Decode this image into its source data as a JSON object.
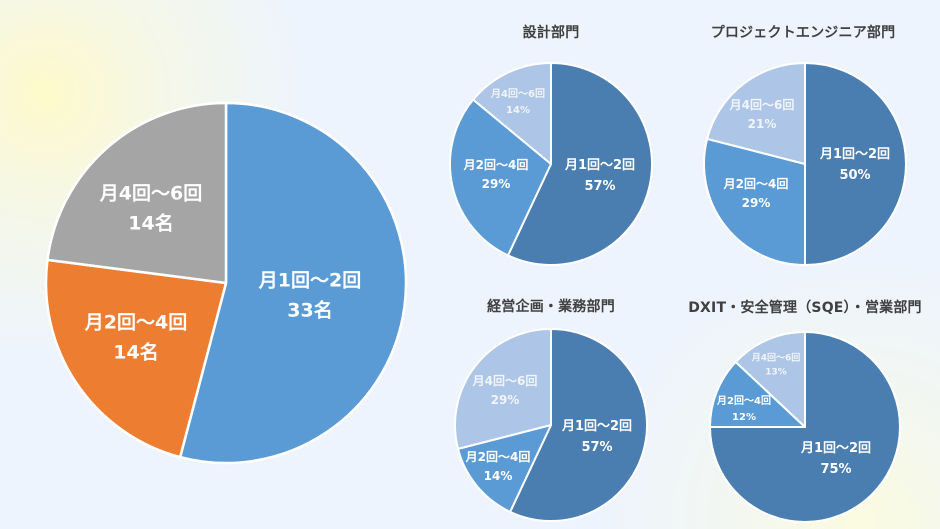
{
  "chart_data": [
    {
      "type": "pie",
      "title": "",
      "categories": [
        "月1回～2回",
        "月2回～4回",
        "月4回～6回"
      ],
      "values": [
        33,
        14,
        14
      ],
      "unit": "名",
      "labels": [
        "33名",
        "14名",
        "14名"
      ],
      "colors": [
        "#5b9bd5",
        "#ed7d31",
        "#a5a5a5"
      ],
      "start_angle": "12 o'clock, clockwise"
    },
    {
      "type": "pie",
      "title": "設計部門",
      "categories": [
        "月1回～2回",
        "月2回～4回",
        "月4回～6回"
      ],
      "values": [
        57,
        29,
        14
      ],
      "unit": "%",
      "labels": [
        "57%",
        "29%",
        "14%"
      ],
      "colors": [
        "#4a7eb0",
        "#5b9bd5",
        "#adc5e6"
      ]
    },
    {
      "type": "pie",
      "title": "プロジェクトエンジニア部門",
      "categories": [
        "月1回～2回",
        "月2回～4回",
        "月4回～6回"
      ],
      "values": [
        50,
        29,
        21
      ],
      "unit": "%",
      "labels": [
        "50%",
        "29%",
        "21%"
      ],
      "colors": [
        "#4a7eb0",
        "#5b9bd5",
        "#adc5e6"
      ]
    },
    {
      "type": "pie",
      "title": "経営企画・業務部門",
      "categories": [
        "月1回～2回",
        "月2回～4回",
        "月4回～6回"
      ],
      "values": [
        57,
        14,
        29
      ],
      "unit": "%",
      "labels": [
        "57%",
        "14%",
        "29%"
      ],
      "colors": [
        "#4a7eb0",
        "#5b9bd5",
        "#adc5e6"
      ]
    },
    {
      "type": "pie",
      "title": "DXIT・安全管理（SQE）・営業部門",
      "categories": [
        "月1回～2回",
        "月2回～4回",
        "月4回～6回"
      ],
      "values": [
        75,
        12,
        13
      ],
      "unit": "%",
      "labels": [
        "75%",
        "12%",
        "13%"
      ],
      "colors": [
        "#4a7eb0",
        "#5b9bd5",
        "#adc5e6"
      ]
    }
  ],
  "main": {
    "slices": [
      {
        "category": "月1回～2回",
        "value": "33名"
      },
      {
        "category": "月2回～4回",
        "value": "14名"
      },
      {
        "category": "月4回～6回",
        "value": "14名"
      }
    ]
  },
  "charts": [
    {
      "title": "設計部門",
      "slices": [
        {
          "category": "月1回～2回",
          "value": "57%"
        },
        {
          "category": "月2回～4回",
          "value": "29%"
        },
        {
          "category": "月4回～6回",
          "value": "14%"
        }
      ]
    },
    {
      "title": "プロジェクトエンジニア部門",
      "slices": [
        {
          "category": "月1回～2回",
          "value": "50%"
        },
        {
          "category": "月2回～4回",
          "value": "29%"
        },
        {
          "category": "月4回～6回",
          "value": "21%"
        }
      ]
    },
    {
      "title": "経営企画・業務部門",
      "slices": [
        {
          "category": "月1回～2回",
          "value": "57%"
        },
        {
          "category": "月2回～4回",
          "value": "14%"
        },
        {
          "category": "月4回～6回",
          "value": "29%"
        }
      ]
    },
    {
      "title": "DXIT・安全管理（SQE）・営業部門",
      "slices": [
        {
          "category": "月1回～2回",
          "value": "75%"
        },
        {
          "category": "月2回～4回",
          "value": "12%"
        },
        {
          "category": "月4回～6回",
          "value": "13%"
        }
      ]
    }
  ]
}
